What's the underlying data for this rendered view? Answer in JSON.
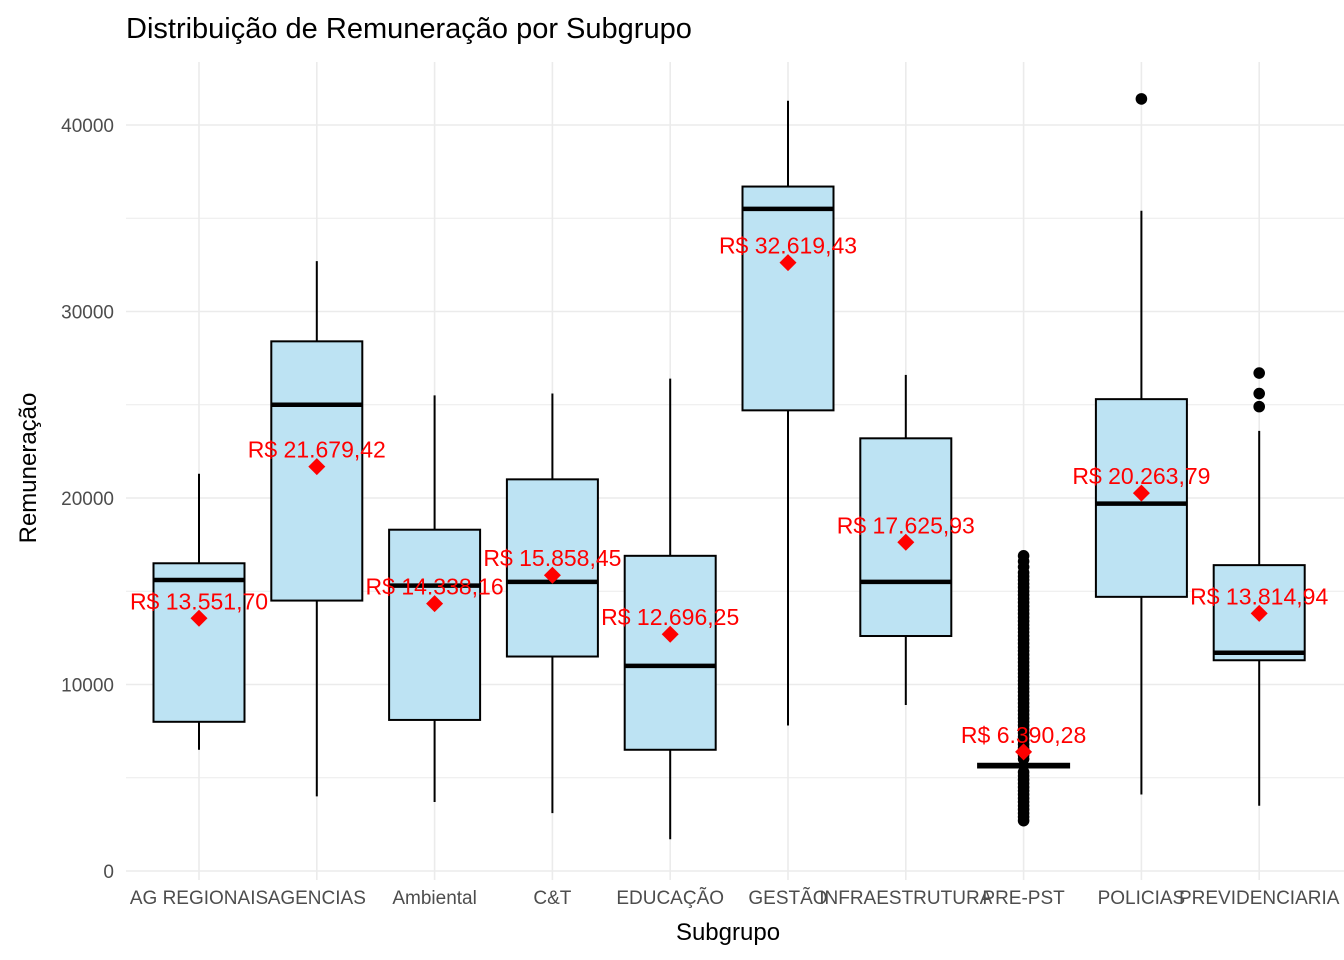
{
  "chart_data": {
    "type": "box",
    "title": "Distribuição de Remuneração por Subgrupo",
    "xlabel": "Subgrupo",
    "ylabel": "Remuneração",
    "ylim": [
      0,
      43500
    ],
    "yticks": [
      0,
      10000,
      20000,
      30000,
      40000
    ],
    "y_tick_labels": [
      "0",
      "10000",
      "20000",
      "30000",
      "40000"
    ],
    "grid": true,
    "legend": "none",
    "colors": {
      "box_fill": "#bde3f3",
      "box_stroke": "#000000",
      "mean_marker": "#ff0000",
      "mean_label": "#ff0000",
      "outlier": "#000000",
      "grid": "#ebebeb"
    },
    "categories": [
      "AG REGIONAIS",
      "AGENCIAS",
      "Ambiental",
      "C&T",
      "EDUCAÇÃO",
      "GESTÃO",
      "INFRAESTRUTURA",
      "PRE-PST",
      "POLICIAS",
      "PREVIDENCIARIA"
    ],
    "boxes": [
      {
        "category": "AG REGIONAIS",
        "whisker_low": 6500,
        "q1": 8000,
        "median": 15600,
        "q3": 16500,
        "whisker_high": 21300,
        "mean": 13551.7,
        "mean_label": "R$ 13.551,70",
        "outliers": []
      },
      {
        "category": "AGENCIAS",
        "whisker_low": 4000,
        "q1": 14500,
        "median": 25000,
        "q3": 28400,
        "whisker_high": 32700,
        "mean": 21679.42,
        "mean_label": "R$ 21.679,42",
        "outliers": []
      },
      {
        "category": "Ambiental",
        "whisker_low": 3700,
        "q1": 8100,
        "median": 15300,
        "q3": 18300,
        "whisker_high": 25500,
        "mean": 14338.16,
        "mean_label": "R$ 14.338,16",
        "outliers": []
      },
      {
        "category": "C&T",
        "whisker_low": 3100,
        "q1": 11500,
        "median": 15500,
        "q3": 21000,
        "whisker_high": 25600,
        "mean": 15858.45,
        "mean_label": "R$ 15.858,45",
        "outliers": []
      },
      {
        "category": "EDUCAÇÃO",
        "whisker_low": 1700,
        "q1": 6500,
        "median": 11000,
        "q3": 16900,
        "whisker_high": 26400,
        "mean": 12696.25,
        "mean_label": "R$ 12.696,25",
        "outliers": []
      },
      {
        "category": "GESTÃO",
        "whisker_low": 7800,
        "q1": 24700,
        "median": 35500,
        "q3": 36700,
        "whisker_high": 41300,
        "mean": 32619.43,
        "mean_label": "R$ 32.619,43",
        "outliers": []
      },
      {
        "category": "INFRAESTRUTURA",
        "whisker_low": 8900,
        "q1": 12600,
        "median": 15500,
        "q3": 23200,
        "whisker_high": 26600,
        "mean": 17625.93,
        "mean_label": "R$ 17.625,93",
        "outliers": []
      },
      {
        "category": "PRE-PST",
        "whisker_low": 5500,
        "q1": 5550,
        "median": 5650,
        "q3": 5750,
        "whisker_high": 5800,
        "mean": 6390.28,
        "mean_label": "R$ 6.390,28",
        "outliers": [
          2700,
          2900,
          3100,
          3300,
          3500,
          3700,
          3900,
          4100,
          4300,
          4500,
          4700,
          4900,
          5100,
          5300,
          6000,
          6200,
          6400,
          6600,
          6800,
          7000,
          7200,
          7400,
          7600,
          7800,
          8000,
          8200,
          8400,
          8600,
          8800,
          9000,
          9200,
          9400,
          9600,
          9800,
          10000,
          10200,
          10400,
          10600,
          10800,
          11000,
          11200,
          11400,
          11600,
          11800,
          12000,
          12200,
          12400,
          12600,
          12800,
          13000,
          13200,
          13400,
          13600,
          13800,
          14000,
          14200,
          14400,
          14600,
          14800,
          15000,
          15200,
          15400,
          15600,
          15800,
          16000,
          16300,
          16600,
          16900
        ]
      },
      {
        "category": "POLICIAS",
        "whisker_low": 4100,
        "q1": 14700,
        "median": 19700,
        "q3": 25300,
        "whisker_high": 35400,
        "mean": 20263.79,
        "mean_label": "R$ 20.263,79",
        "outliers": [
          41400
        ]
      },
      {
        "category": "PREVIDENCIARIA",
        "whisker_low": 3500,
        "q1": 11300,
        "median": 11700,
        "q3": 16400,
        "whisker_high": 23600,
        "mean": 13814.94,
        "mean_label": "R$ 13.814,94",
        "outliers": [
          24900,
          25600,
          26700
        ]
      }
    ]
  }
}
